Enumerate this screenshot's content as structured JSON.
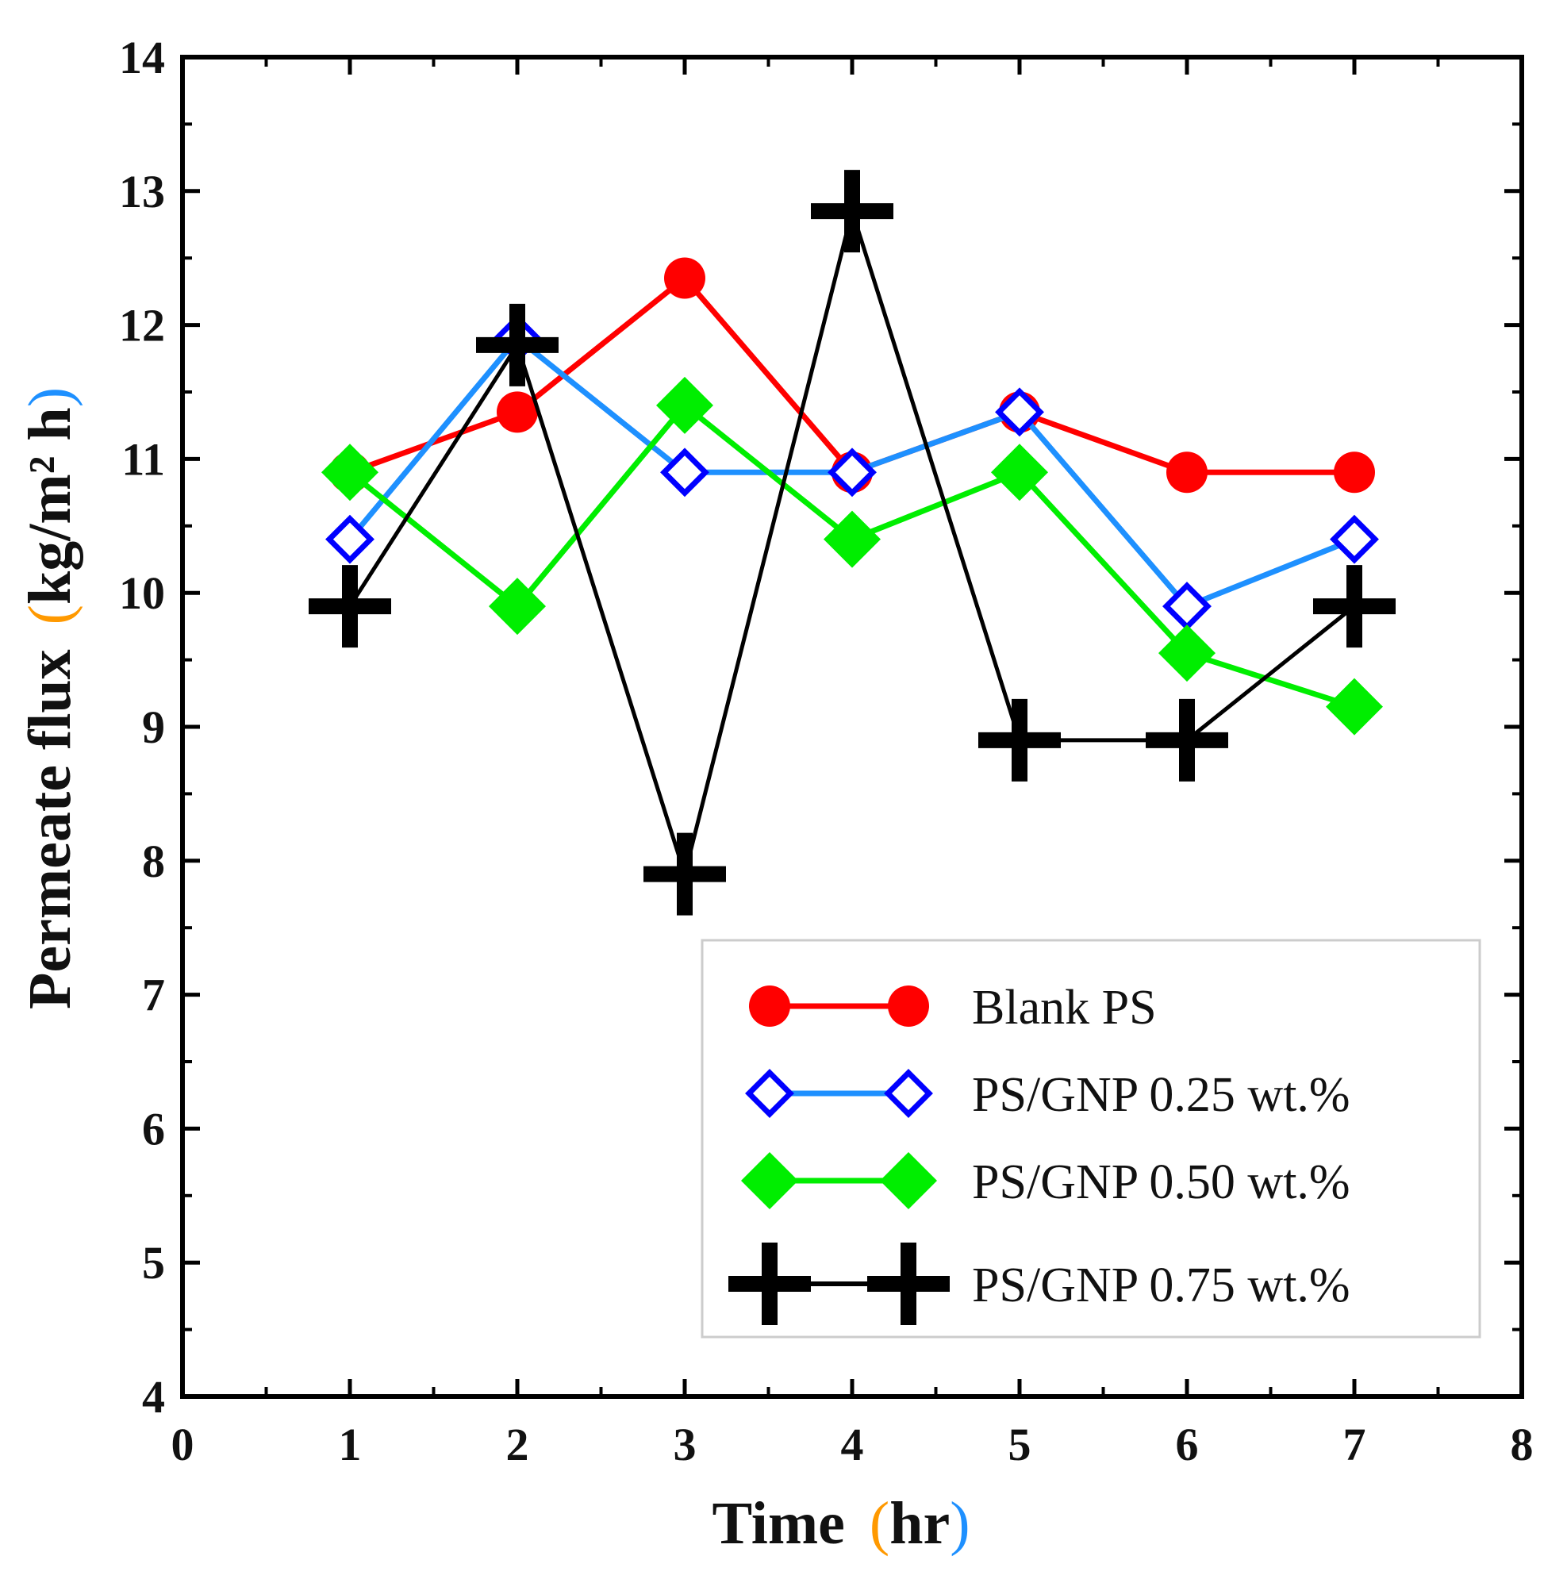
{
  "chart_data": {
    "type": "line",
    "title": "",
    "xlabel": "Time",
    "xlabel_unit": "hr",
    "ylabel": "Permeate flux",
    "ylabel_unit": "kg/m² h",
    "xlim": [
      0,
      8
    ],
    "ylim": [
      4,
      14
    ],
    "x_ticks": [
      0,
      1,
      2,
      3,
      4,
      5,
      6,
      7,
      8
    ],
    "y_ticks": [
      4,
      5,
      6,
      7,
      8,
      9,
      10,
      11,
      12,
      13,
      14
    ],
    "grid": false,
    "legend_position": "bottom-right",
    "x": [
      1,
      2,
      3,
      4,
      5,
      6,
      7
    ],
    "series": [
      {
        "name": "Blank PS",
        "values": [
          10.9,
          11.35,
          12.35,
          10.9,
          11.35,
          10.9,
          10.9
        ],
        "color": "#ff0000",
        "line_color": "#ff0000",
        "marker": "circle"
      },
      {
        "name": "PS/GNP 0.25 wt.%",
        "values": [
          10.4,
          11.9,
          10.9,
          10.9,
          11.35,
          9.9,
          10.4
        ],
        "color": "#0000ff",
        "line_color": "#1e90ff",
        "marker": "diamond-open"
      },
      {
        "name": "PS/GNP 0.50 wt.%",
        "values": [
          10.9,
          9.9,
          11.4,
          10.4,
          10.9,
          9.55,
          9.15
        ],
        "color": "#00ee00",
        "line_color": "#00ee00",
        "marker": "diamond"
      },
      {
        "name": "PS/GNP 0.75 wt.%",
        "values": [
          9.9,
          11.85,
          7.9,
          12.85,
          8.9,
          8.9,
          9.9
        ],
        "color": "#000000",
        "line_color": "#000000",
        "marker": "plus"
      }
    ]
  }
}
